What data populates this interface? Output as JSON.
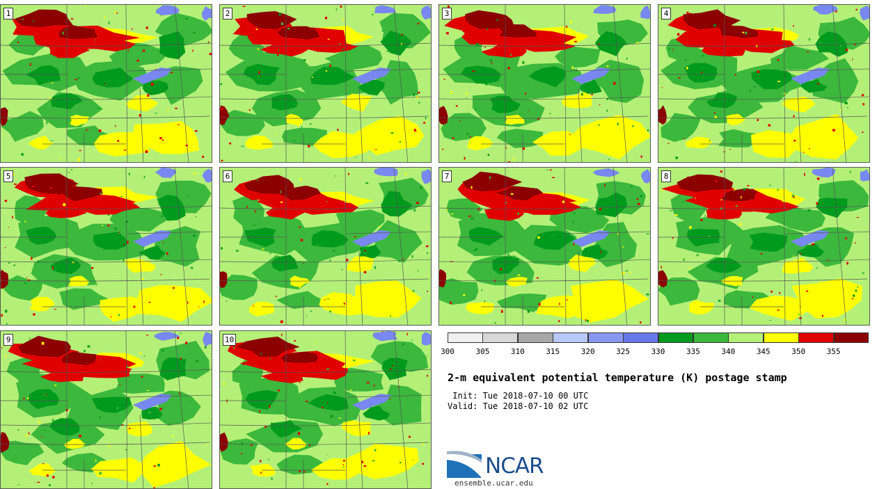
{
  "members": [
    {
      "label": "1"
    },
    {
      "label": "2"
    },
    {
      "label": "3"
    },
    {
      "label": "4"
    },
    {
      "label": "5"
    },
    {
      "label": "6"
    },
    {
      "label": "7"
    },
    {
      "label": "8"
    },
    {
      "label": "9"
    },
    {
      "label": "10"
    }
  ],
  "legend": {
    "unit": "K",
    "bins": [
      {
        "min": 300,
        "max": 305,
        "color": "#f0f0f0"
      },
      {
        "min": 305,
        "max": 310,
        "color": "#d8d8d8"
      },
      {
        "min": 310,
        "max": 315,
        "color": "#a8a8a8"
      },
      {
        "min": 315,
        "max": 320,
        "color": "#b8c8f8"
      },
      {
        "min": 320,
        "max": 325,
        "color": "#8898f0"
      },
      {
        "min": 325,
        "max": 330,
        "color": "#6878e8"
      },
      {
        "min": 330,
        "max": 335,
        "color": "#009a1e"
      },
      {
        "min": 335,
        "max": 340,
        "color": "#3cb83c"
      },
      {
        "min": 340,
        "max": 345,
        "color": "#b4f078"
      },
      {
        "min": 345,
        "max": 350,
        "color": "#ffff00"
      },
      {
        "min": 350,
        "max": 355,
        "color": "#e00000"
      },
      {
        "min": 355,
        "max": 360,
        "color": "#8c0000"
      }
    ],
    "tick_labels": [
      "300",
      "305",
      "310",
      "315",
      "320",
      "325",
      "330",
      "335",
      "340",
      "345",
      "350",
      "355"
    ]
  },
  "title": "2-m equivalent potential temperature (K) postage stamp",
  "init_line": " Init: Tue 2018-07-10 00 UTC",
  "valid_line": "Valid: Tue 2018-07-10 02 UTC",
  "logo_text": "NCAR",
  "url": "ensemble.ucar.edu",
  "map_colors": {
    "base": "#b4f078",
    "dark_red": "#8c0000",
    "red": "#e00000",
    "yellow": "#ffff00",
    "green": "#3cb83c",
    "dark_green": "#009a1e",
    "water": "#7888f0",
    "border": "#555555"
  }
}
